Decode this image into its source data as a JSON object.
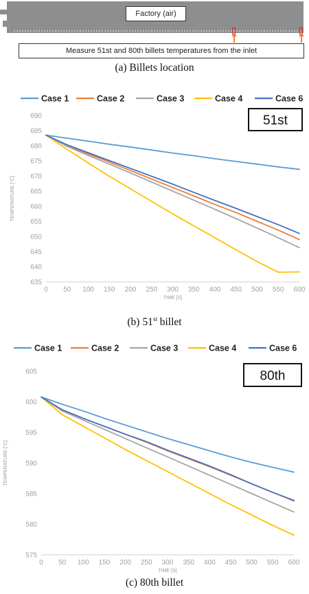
{
  "diagram": {
    "factory_label": "Factory (air)",
    "note": "Measure 51st and 80th billets temperatures from the inlet",
    "caption": "(a)  Billets  location",
    "marker_color": "#e02020",
    "arrow_color": "#f08030"
  },
  "captions": {
    "b_prefix": "(b)  51",
    "b_sup": "st",
    "b_suffix": "  billet",
    "c": "(c)  80th  billet"
  },
  "colors": {
    "Case 1": "#5b9bd5",
    "Case 2": "#ed7d31",
    "Case 3": "#a5a5a5",
    "Case 4": "#ffc000",
    "Case 6": "#4472c4"
  },
  "chart_data": [
    {
      "type": "line",
      "badge": "51st",
      "xlabel": "TIME [S]",
      "ylabel": "TEMPERATURE [°C]",
      "x": [
        0,
        50,
        100,
        150,
        200,
        250,
        300,
        350,
        400,
        450,
        500,
        550,
        600
      ],
      "xticks": [
        "0",
        "50",
        "100",
        "150",
        "200",
        "250",
        "300",
        "350",
        "400",
        "450",
        "500",
        "550",
        "600"
      ],
      "yticks": [
        "635",
        "640",
        "645",
        "650",
        "655",
        "660",
        "665",
        "670",
        "675",
        "680",
        "685",
        "690"
      ],
      "xlim": [
        0,
        600
      ],
      "ylim": [
        635,
        690
      ],
      "grid": false,
      "legend": "top",
      "series": [
        {
          "name": "Case 1",
          "values": [
            683.5,
            682.5,
            681.5,
            680.5,
            679.6,
            678.6,
            677.6,
            676.7,
            675.7,
            674.8,
            673.9,
            673.0,
            672.2
          ]
        },
        {
          "name": "Case 2",
          "values": [
            683.5,
            680.0,
            677.3,
            674.6,
            671.8,
            669.0,
            666.2,
            663.4,
            660.6,
            657.9,
            655.0,
            652.1,
            649.0
          ]
        },
        {
          "name": "Case 3",
          "values": [
            683.5,
            679.8,
            676.8,
            673.9,
            671.0,
            668.0,
            665.0,
            662.0,
            659.0,
            655.9,
            652.8,
            649.6,
            646.3
          ]
        },
        {
          "name": "Case 4",
          "values": [
            683.5,
            678.8,
            674.3,
            669.9,
            665.8,
            661.6,
            657.5,
            653.5,
            649.6,
            645.6,
            641.7,
            638.2,
            638.3
          ]
        },
        {
          "name": "Case 6",
          "values": [
            683.5,
            680.3,
            677.7,
            675.1,
            672.5,
            669.9,
            667.3,
            664.6,
            661.9,
            659.3,
            656.6,
            653.9,
            651.0
          ]
        }
      ]
    },
    {
      "type": "line",
      "badge": "80th",
      "xlabel": "TIME [S]",
      "ylabel": "TEMPERATURE [°C]",
      "x": [
        0,
        50,
        100,
        150,
        200,
        250,
        300,
        350,
        400,
        450,
        500,
        550,
        600
      ],
      "xticks": [
        "0",
        "50",
        "100",
        "150",
        "200",
        "250",
        "300",
        "350",
        "400",
        "450",
        "500",
        "550",
        "600"
      ],
      "yticks": [
        "575",
        "580",
        "585",
        "590",
        "595",
        "600",
        "605"
      ],
      "xlim": [
        0,
        600
      ],
      "ylim": [
        575,
        605
      ],
      "grid": false,
      "legend": "top",
      "series": [
        {
          "name": "Case 1",
          "values": [
            600.8,
            599.6,
            598.5,
            597.3,
            596.2,
            595.1,
            594.0,
            593.0,
            592.0,
            591.0,
            590.1,
            589.3,
            588.5
          ]
        },
        {
          "name": "Case 2",
          "values": [
            600.8,
            598.7,
            597.3,
            596.0,
            594.7,
            593.4,
            592.0,
            590.7,
            589.4,
            588.0,
            586.6,
            585.2,
            583.8
          ]
        },
        {
          "name": "Case 3",
          "values": [
            600.8,
            598.5,
            597.0,
            595.5,
            594.0,
            592.5,
            591.0,
            589.5,
            588.0,
            586.5,
            585.0,
            583.5,
            582.0
          ]
        },
        {
          "name": "Case 4",
          "values": [
            600.8,
            597.9,
            596.0,
            594.1,
            592.2,
            590.4,
            588.6,
            586.8,
            585.0,
            583.2,
            581.5,
            579.8,
            578.2
          ]
        },
        {
          "name": "Case 6",
          "values": [
            600.8,
            598.7,
            597.3,
            596.0,
            594.7,
            593.5,
            592.1,
            590.8,
            589.5,
            588.1,
            586.6,
            585.2,
            583.9
          ]
        }
      ]
    }
  ]
}
